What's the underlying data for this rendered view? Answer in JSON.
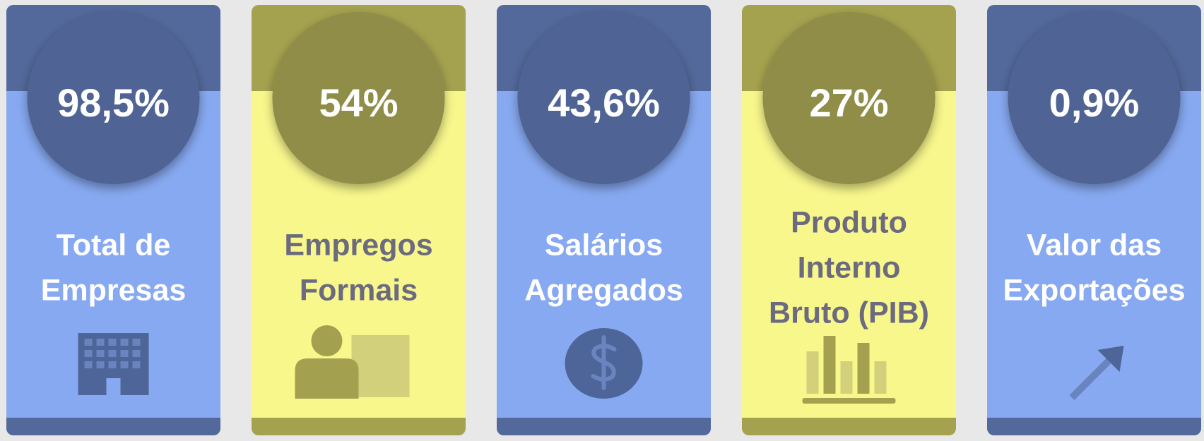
{
  "cards": [
    {
      "value": "98,5%",
      "label": [
        "Total de",
        "Empresas"
      ]
    },
    {
      "value": "54%",
      "label": [
        "Empregos",
        "Formais"
      ]
    },
    {
      "value": "43,6%",
      "label": [
        "Salários",
        "Agregados"
      ]
    },
    {
      "value": "27%",
      "label": [
        "Produto",
        "Interno",
        "Bruto (PIB)"
      ]
    },
    {
      "value": "0,9%",
      "label": [
        "Valor das",
        "Exportações"
      ]
    }
  ]
}
